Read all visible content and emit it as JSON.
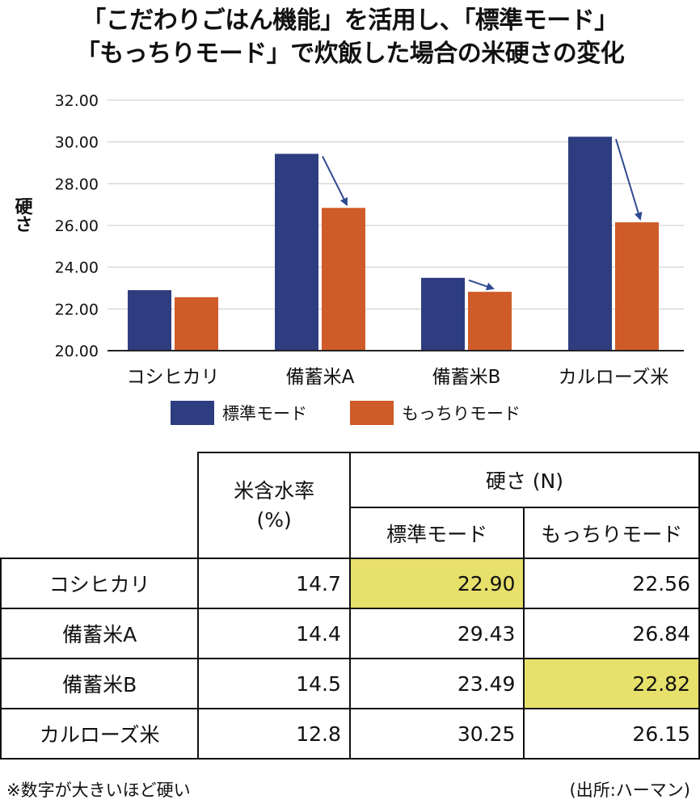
{
  "title_line1": "「こだわりごはん機能」を活用し、「標準モード」",
  "title_line2": "「もっちりモード」で炊飯した場合の米硬さの変化",
  "colors": {
    "standard": "#2e3d80",
    "mochi": "#cf5b28",
    "arrow": "#2e4a8f",
    "highlight": "#e7e06a"
  },
  "chart_data": {
    "type": "bar",
    "ylabel": "硬さ",
    "ylim": [
      20,
      32
    ],
    "yticks": [
      "20.00",
      "22.00",
      "24.00",
      "26.00",
      "28.00",
      "30.00",
      "32.00"
    ],
    "grid": true,
    "legend_position": "bottom",
    "categories": [
      "コシヒカリ",
      "備蓄米A",
      "備蓄米B",
      "カルローズ米"
    ],
    "series": [
      {
        "name": "標準モード",
        "color": "#2e3d80",
        "values": [
          22.9,
          29.43,
          23.49,
          30.25
        ]
      },
      {
        "name": "もっちりモード",
        "color": "#cf5b28",
        "values": [
          22.56,
          26.84,
          22.82,
          26.15
        ]
      }
    ],
    "arrows_for_categories": [
      "備蓄米A",
      "備蓄米B",
      "カルローズ米"
    ]
  },
  "table": {
    "header_moisture": "米含水率",
    "header_moisture_unit": "(%)",
    "header_hardness": "硬さ (N)",
    "header_standard": "標準モード",
    "header_mochi": "もっちりモード",
    "rows": [
      {
        "name": "コシヒカリ",
        "moisture": "14.7",
        "standard": "22.90",
        "mochi": "22.56"
      },
      {
        "name": "備蓄米A",
        "moisture": "14.4",
        "standard": "29.43",
        "mochi": "26.84"
      },
      {
        "name": "備蓄米B",
        "moisture": "14.5",
        "standard": "23.49",
        "mochi": "22.82"
      },
      {
        "name": "カルローズ米",
        "moisture": "12.8",
        "standard": "30.25",
        "mochi": "26.15"
      }
    ]
  },
  "footer_note": "※数字が大きいほど硬い",
  "footer_source": "(出所:ハーマン)"
}
